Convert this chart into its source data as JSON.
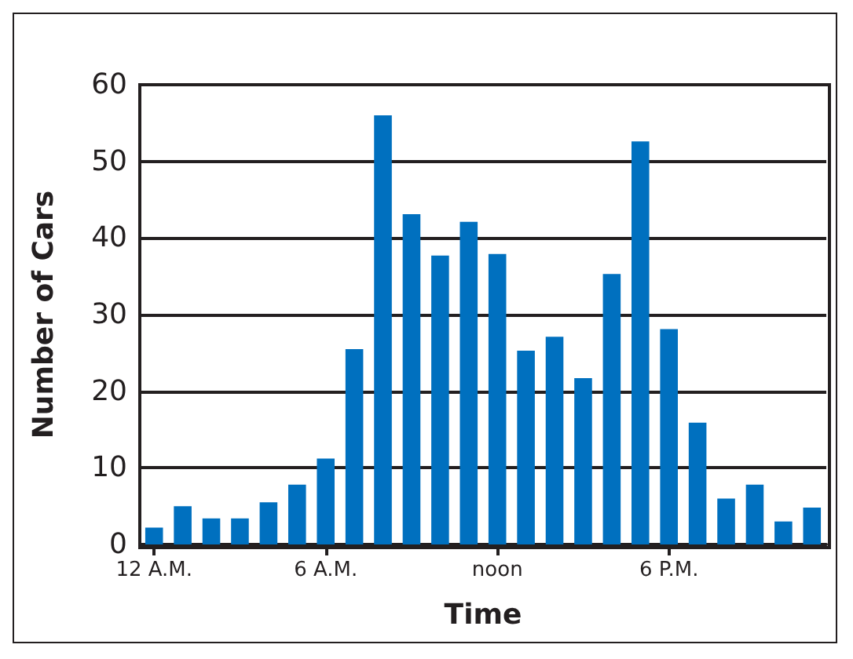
{
  "chart_data": {
    "type": "bar",
    "xlabel": "Time",
    "ylabel": "Number of Cars",
    "categories": [
      "12 A.M.",
      null,
      null,
      null,
      null,
      null,
      "6 A.M.",
      null,
      null,
      null,
      null,
      null,
      "noon",
      null,
      null,
      null,
      null,
      null,
      "6 P.M.",
      null,
      null,
      null,
      null,
      null
    ],
    "values": [
      2.2,
      5.0,
      3.4,
      3.4,
      5.5,
      7.8,
      11.2,
      25.5,
      56,
      43.1,
      37.7,
      42.1,
      37.9,
      25.3,
      27.1,
      21.7,
      35.3,
      52.6,
      28.1,
      15.9,
      6.0,
      7.8,
      3.0,
      4.8
    ],
    "color": "#0070bf",
    "ylim": [
      0,
      60
    ],
    "yticks": [
      0,
      10,
      20,
      30,
      40,
      50,
      60
    ],
    "grid": "y"
  }
}
